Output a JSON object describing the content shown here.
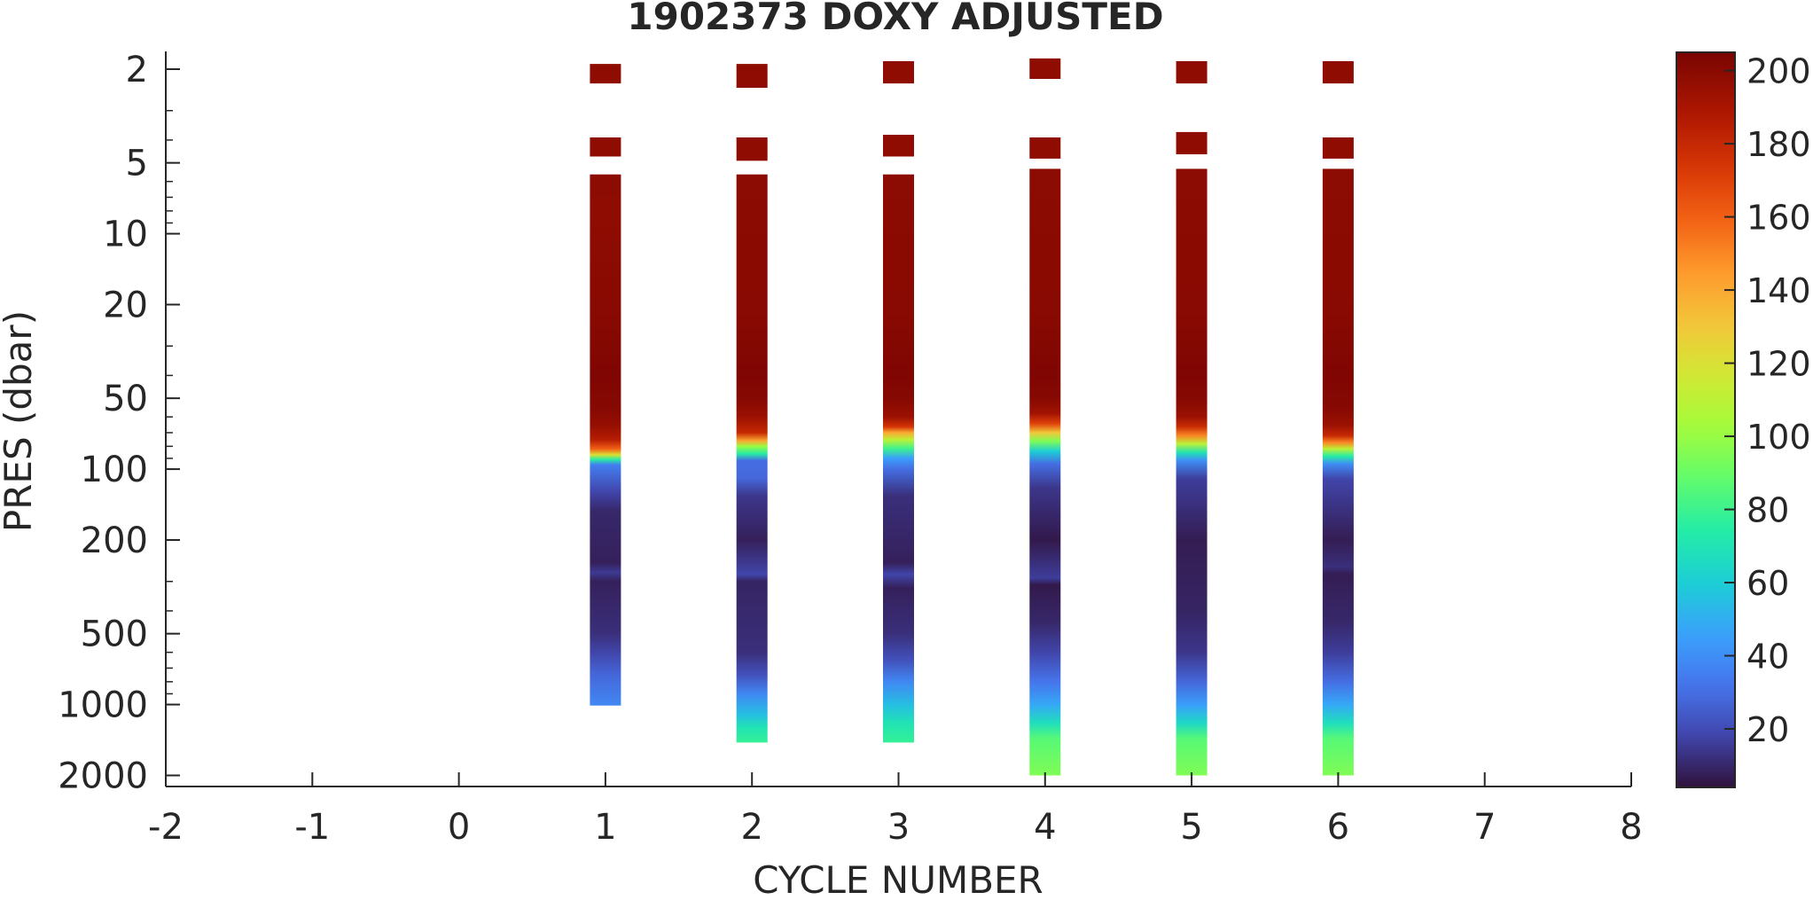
{
  "chart_data": {
    "type": "heatmap",
    "title": "1902373  DOXY ADJUSTED",
    "xlabel": "CYCLE NUMBER",
    "ylabel": "PRES (dbar)",
    "xlim": [
      -2,
      8
    ],
    "x_ticks": [
      -2,
      -1,
      0,
      1,
      2,
      3,
      4,
      5,
      6,
      7,
      8
    ],
    "ylim": [
      1.85,
      2500
    ],
    "y_scale": "log",
    "y_reversed": true,
    "y_ticks": [
      2,
      5,
      10,
      20,
      50,
      100,
      200,
      500,
      1000,
      2000
    ],
    "colorbar": {
      "colormap": "turbo",
      "range": [
        4,
        205
      ],
      "ticks": [
        20,
        40,
        60,
        80,
        100,
        120,
        140,
        160,
        180,
        200
      ],
      "placement": "right"
    },
    "grid": false,
    "profiles": [
      {
        "cycle": 1,
        "segments": [
          {
            "p_top": 1.9,
            "p_bottom": 2.3,
            "doxy": 198
          },
          {
            "p_top": 3.9,
            "p_bottom": 4.7,
            "doxy": 198
          },
          {
            "p_top": 5.6,
            "p_bottom": 1010,
            "doxy": null
          }
        ],
        "samples": [
          {
            "p": 5.6,
            "v": 199
          },
          {
            "p": 6.9,
            "v": 199
          },
          {
            "p": 7.0,
            "v": 198
          },
          {
            "p": 20,
            "v": 200
          },
          {
            "p": 40,
            "v": 203
          },
          {
            "p": 55,
            "v": 201
          },
          {
            "p": 65,
            "v": 196
          },
          {
            "p": 75,
            "v": 185
          },
          {
            "p": 82,
            "v": 160
          },
          {
            "p": 87,
            "v": 120
          },
          {
            "p": 91,
            "v": 75
          },
          {
            "p": 96,
            "v": 35
          },
          {
            "p": 125,
            "v": 18
          },
          {
            "p": 150,
            "v": 10
          },
          {
            "p": 250,
            "v": 8
          },
          {
            "p": 275,
            "v": 15
          },
          {
            "p": 300,
            "v": 8
          },
          {
            "p": 500,
            "v": 12
          },
          {
            "p": 600,
            "v": 18
          },
          {
            "p": 750,
            "v": 28
          },
          {
            "p": 1010,
            "v": 38
          }
        ]
      },
      {
        "cycle": 2,
        "segments": [
          {
            "p_top": 1.9,
            "p_bottom": 2.4,
            "doxy": 198
          },
          {
            "p_top": 3.9,
            "p_bottom": 4.9,
            "doxy": 198
          },
          {
            "p_top": 5.6,
            "p_bottom": 1450,
            "doxy": null
          }
        ],
        "samples": [
          {
            "p": 5.6,
            "v": 199
          },
          {
            "p": 20,
            "v": 200
          },
          {
            "p": 40,
            "v": 203
          },
          {
            "p": 50,
            "v": 201
          },
          {
            "p": 60,
            "v": 194
          },
          {
            "p": 70,
            "v": 180
          },
          {
            "p": 76,
            "v": 140
          },
          {
            "p": 80,
            "v": 100
          },
          {
            "p": 86,
            "v": 75
          },
          {
            "p": 92,
            "v": 30
          },
          {
            "p": 110,
            "v": 28
          },
          {
            "p": 130,
            "v": 14
          },
          {
            "p": 200,
            "v": 8
          },
          {
            "p": 280,
            "v": 18
          },
          {
            "p": 300,
            "v": 9
          },
          {
            "p": 600,
            "v": 12
          },
          {
            "p": 750,
            "v": 22
          },
          {
            "p": 900,
            "v": 38
          },
          {
            "p": 1100,
            "v": 55
          },
          {
            "p": 1250,
            "v": 70
          },
          {
            "p": 1450,
            "v": 78
          }
        ]
      },
      {
        "cycle": 3,
        "segments": [
          {
            "p_top": 1.85,
            "p_bottom": 2.3,
            "doxy": 198
          },
          {
            "p_top": 3.8,
            "p_bottom": 4.7,
            "doxy": 198
          },
          {
            "p_top": 5.6,
            "p_bottom": 1450,
            "doxy": null
          }
        ],
        "samples": [
          {
            "p": 5.6,
            "v": 199
          },
          {
            "p": 20,
            "v": 200
          },
          {
            "p": 40,
            "v": 203
          },
          {
            "p": 50,
            "v": 201
          },
          {
            "p": 60,
            "v": 194
          },
          {
            "p": 66,
            "v": 175
          },
          {
            "p": 70,
            "v": 140
          },
          {
            "p": 75,
            "v": 110
          },
          {
            "p": 82,
            "v": 80
          },
          {
            "p": 90,
            "v": 45
          },
          {
            "p": 100,
            "v": 30
          },
          {
            "p": 130,
            "v": 12
          },
          {
            "p": 250,
            "v": 8
          },
          {
            "p": 280,
            "v": 18
          },
          {
            "p": 320,
            "v": 8
          },
          {
            "p": 500,
            "v": 12
          },
          {
            "p": 650,
            "v": 22
          },
          {
            "p": 800,
            "v": 38
          },
          {
            "p": 1000,
            "v": 55
          },
          {
            "p": 1200,
            "v": 70
          },
          {
            "p": 1450,
            "v": 78
          }
        ]
      },
      {
        "cycle": 4,
        "segments": [
          {
            "p_top": 1.8,
            "p_bottom": 2.2,
            "doxy": 198
          },
          {
            "p_top": 3.9,
            "p_bottom": 4.8,
            "doxy": 198
          },
          {
            "p_top": 5.3,
            "p_bottom": 2000,
            "doxy": null
          }
        ],
        "samples": [
          {
            "p": 5.3,
            "v": 199
          },
          {
            "p": 20,
            "v": 200
          },
          {
            "p": 40,
            "v": 203
          },
          {
            "p": 50,
            "v": 201
          },
          {
            "p": 58,
            "v": 192
          },
          {
            "p": 64,
            "v": 170
          },
          {
            "p": 70,
            "v": 130
          },
          {
            "p": 76,
            "v": 95
          },
          {
            "p": 84,
            "v": 60
          },
          {
            "p": 95,
            "v": 30
          },
          {
            "p": 120,
            "v": 14
          },
          {
            "p": 200,
            "v": 6
          },
          {
            "p": 290,
            "v": 16
          },
          {
            "p": 310,
            "v": 6
          },
          {
            "p": 450,
            "v": 10
          },
          {
            "p": 600,
            "v": 18
          },
          {
            "p": 800,
            "v": 32
          },
          {
            "p": 1000,
            "v": 48
          },
          {
            "p": 1200,
            "v": 68
          },
          {
            "p": 1400,
            "v": 86
          },
          {
            "p": 2000,
            "v": 95
          }
        ]
      },
      {
        "cycle": 5,
        "segments": [
          {
            "p_top": 1.85,
            "p_bottom": 2.3,
            "doxy": 198
          },
          {
            "p_top": 3.7,
            "p_bottom": 4.6,
            "doxy": 198
          },
          {
            "p_top": 5.3,
            "p_bottom": 2000,
            "doxy": null
          }
        ],
        "samples": [
          {
            "p": 5.3,
            "v": 199
          },
          {
            "p": 20,
            "v": 200
          },
          {
            "p": 40,
            "v": 203
          },
          {
            "p": 50,
            "v": 201
          },
          {
            "p": 60,
            "v": 194
          },
          {
            "p": 66,
            "v": 178
          },
          {
            "p": 72,
            "v": 150
          },
          {
            "p": 78,
            "v": 110
          },
          {
            "p": 85,
            "v": 70
          },
          {
            "p": 92,
            "v": 40
          },
          {
            "p": 110,
            "v": 16
          },
          {
            "p": 200,
            "v": 7
          },
          {
            "p": 400,
            "v": 9
          },
          {
            "p": 600,
            "v": 14
          },
          {
            "p": 800,
            "v": 28
          },
          {
            "p": 1000,
            "v": 45
          },
          {
            "p": 1200,
            "v": 65
          },
          {
            "p": 1400,
            "v": 86
          },
          {
            "p": 2000,
            "v": 95
          }
        ]
      },
      {
        "cycle": 6,
        "segments": [
          {
            "p_top": 1.85,
            "p_bottom": 2.3,
            "doxy": 198
          },
          {
            "p_top": 3.9,
            "p_bottom": 4.8,
            "doxy": 198
          },
          {
            "p_top": 5.3,
            "p_bottom": 2000,
            "doxy": null
          }
        ],
        "samples": [
          {
            "p": 5.3,
            "v": 199
          },
          {
            "p": 20,
            "v": 200
          },
          {
            "p": 40,
            "v": 203
          },
          {
            "p": 55,
            "v": 201
          },
          {
            "p": 65,
            "v": 194
          },
          {
            "p": 72,
            "v": 180
          },
          {
            "p": 77,
            "v": 150
          },
          {
            "p": 82,
            "v": 110
          },
          {
            "p": 88,
            "v": 75
          },
          {
            "p": 95,
            "v": 40
          },
          {
            "p": 110,
            "v": 18
          },
          {
            "p": 200,
            "v": 7
          },
          {
            "p": 260,
            "v": 12
          },
          {
            "p": 280,
            "v": 7
          },
          {
            "p": 450,
            "v": 10
          },
          {
            "p": 600,
            "v": 16
          },
          {
            "p": 800,
            "v": 30
          },
          {
            "p": 1000,
            "v": 48
          },
          {
            "p": 1200,
            "v": 68
          },
          {
            "p": 1400,
            "v": 86
          },
          {
            "p": 2000,
            "v": 95
          }
        ]
      }
    ]
  }
}
